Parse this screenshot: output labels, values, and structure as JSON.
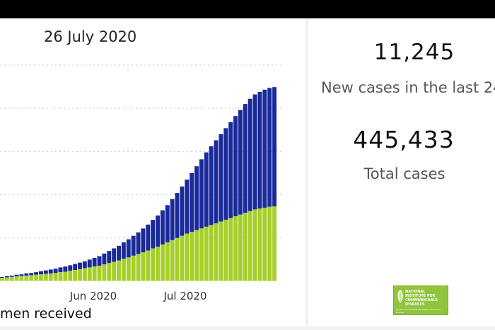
{
  "chart_title": "26 July 2020",
  "legend_label": "men received",
  "stats": {
    "new_cases_value": "11,245",
    "new_cases_label": "New cases in the last 24",
    "total_cases_value": "445,433",
    "total_cases_label": "Total cases"
  },
  "logo": {
    "title": "NATIONAL INSTITUTE FOR COMMUNICABLE DISEASES",
    "subtitle": "Division of the National Health Laboratory Service"
  },
  "colors": {
    "series_total": "#1a2a9a",
    "series_green": "#a6cf2a",
    "gridline": "#c8c8c8",
    "top_bar": "#000000"
  },
  "chart_data": {
    "type": "bar",
    "stacked": true,
    "x_tick_labels": [
      "Jun 2020",
      "Jul 2020"
    ],
    "ylim": [
      0,
      5
    ],
    "grid": true,
    "series": [
      {
        "values": [
          0.08,
          0.09,
          0.1,
          0.11,
          0.12,
          0.13,
          0.14,
          0.15,
          0.16,
          0.17,
          0.18,
          0.19,
          0.21,
          0.22,
          0.24,
          0.26,
          0.28,
          0.3,
          0.32,
          0.34,
          0.36,
          0.39,
          0.42,
          0.45,
          0.48,
          0.52,
          0.55,
          0.59,
          0.63,
          0.67,
          0.71,
          0.76,
          0.8,
          0.85,
          0.9,
          0.95,
          1.0,
          1.05,
          1.1,
          1.14,
          1.18,
          1.22,
          1.26,
          1.3,
          1.34,
          1.38,
          1.42,
          1.46,
          1.5,
          1.54,
          1.58,
          1.62,
          1.66,
          1.68,
          1.7,
          1.72,
          1.73
        ]
      },
      {
        "values": [
          0.02,
          0.03,
          0.03,
          0.04,
          0.04,
          0.05,
          0.05,
          0.06,
          0.07,
          0.08,
          0.09,
          0.1,
          0.11,
          0.12,
          0.13,
          0.14,
          0.15,
          0.16,
          0.18,
          0.2,
          0.22,
          0.25,
          0.28,
          0.31,
          0.34,
          0.38,
          0.42,
          0.46,
          0.5,
          0.55,
          0.6,
          0.66,
          0.72,
          0.79,
          0.86,
          0.95,
          1.04,
          1.14,
          1.25,
          1.36,
          1.48,
          1.6,
          1.72,
          1.82,
          1.92,
          2.02,
          2.12,
          2.22,
          2.32,
          2.42,
          2.52,
          2.6,
          2.66,
          2.7,
          2.73,
          2.75,
          2.76
        ]
      }
    ]
  }
}
